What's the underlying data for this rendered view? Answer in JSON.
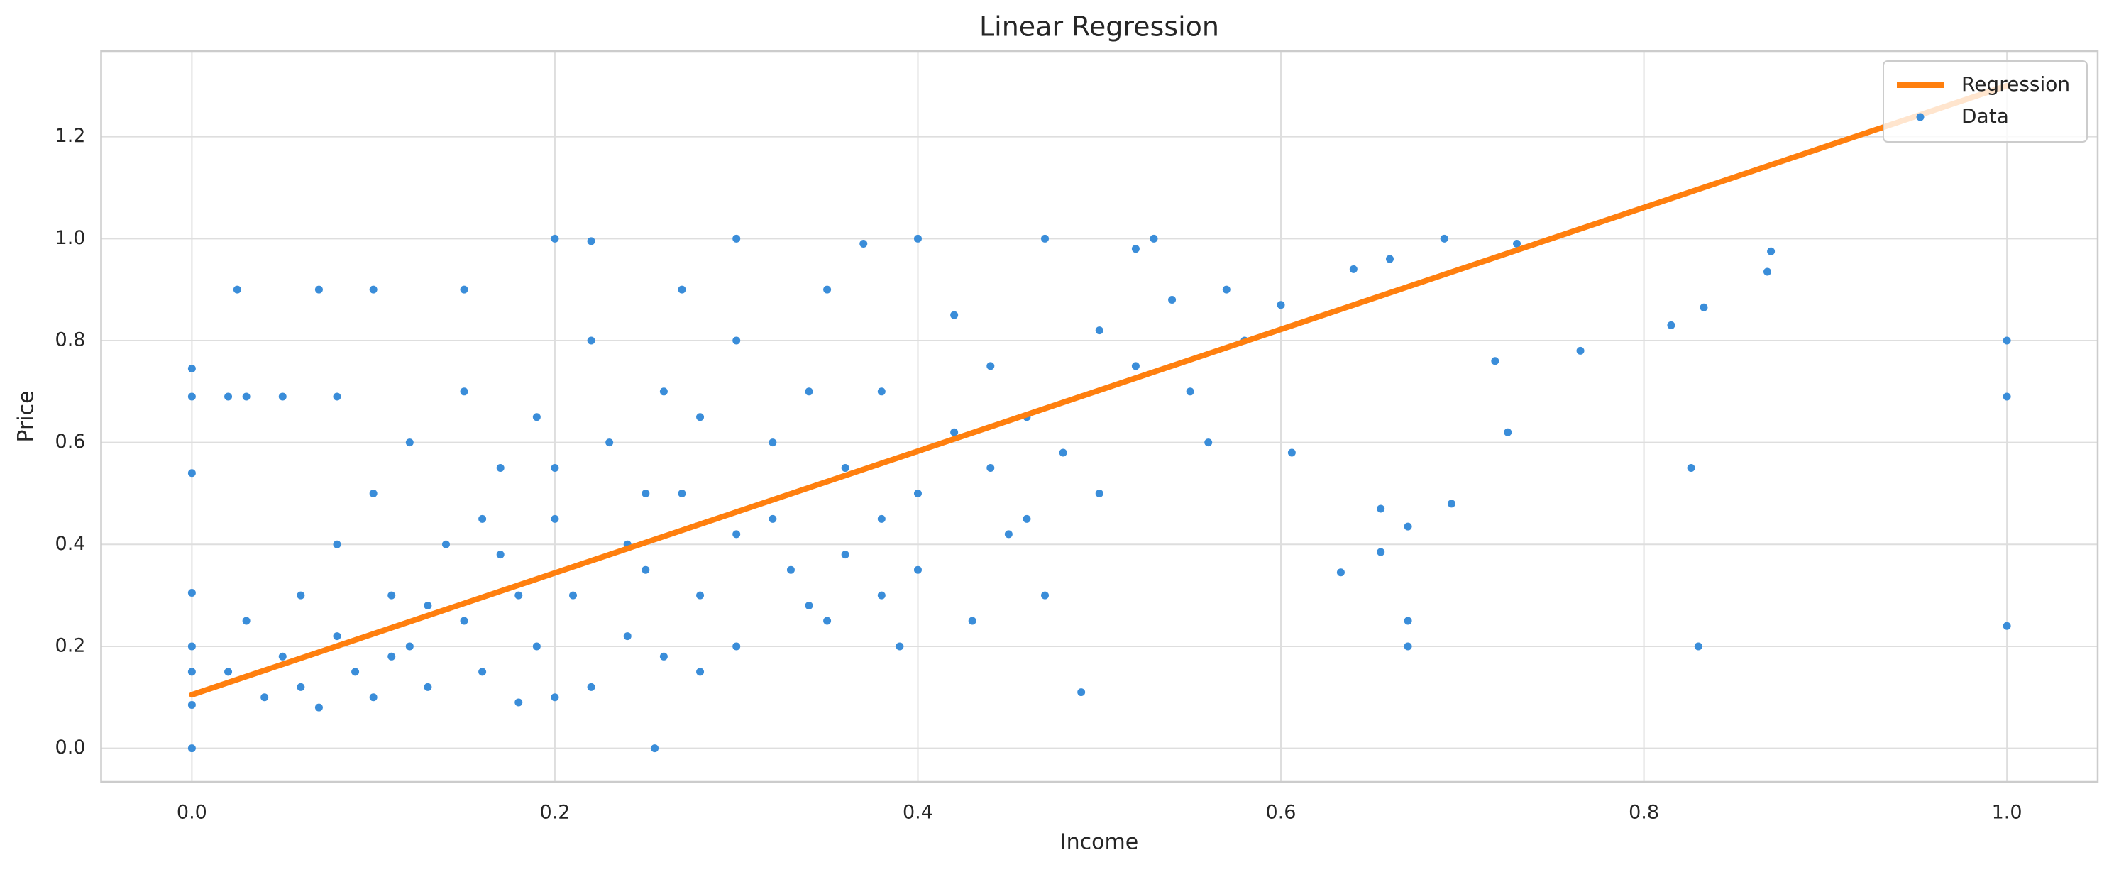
{
  "chart_data": {
    "type": "scatter",
    "title": "Linear Regression",
    "x_label": "Income",
    "y_label": "Price",
    "xlim": [
      -0.05,
      1.05
    ],
    "ylim": [
      -0.066,
      1.368
    ],
    "xticks": [
      {
        "value": 0,
        "label": "0.0"
      },
      0.2,
      0.4,
      0.6,
      0.8,
      {
        "value": 1,
        "label": "1.0"
      }
    ],
    "yticks": [
      {
        "value": 0,
        "label": "0.0"
      },
      0.2,
      0.4,
      0.6,
      0.8,
      {
        "value": 1,
        "label": "1.0"
      },
      1.2
    ],
    "grid": true,
    "legend": "upper right",
    "series": [
      {
        "name": "Regression",
        "type": "line",
        "color": "#ff7f0e",
        "x": [
          0,
          1
        ],
        "values": [
          0.105,
          1.3
        ]
      },
      {
        "name": "Data",
        "type": "scatter",
        "color": "#3a8dd9",
        "x": [
          1.0,
          1.0,
          1.0,
          0.87,
          0.868,
          0.833,
          0.815,
          0.826,
          0.83,
          0.765,
          0.725,
          0.718,
          0.694,
          0.67,
          0.67,
          0.67,
          0.655,
          0.655,
          0.633,
          0.606,
          0.49,
          0.255,
          0.0,
          0.0,
          0.0,
          0.0,
          0.0,
          0.0,
          0.0,
          0.0,
          0.2,
          0.22,
          0.3,
          0.37,
          0.4,
          0.47,
          0.53,
          0.52,
          0.69,
          0.73,
          0.1,
          0.07,
          0.15,
          0.025,
          0.03,
          0.02,
          0.05,
          0.08,
          0.27,
          0.35,
          0.57,
          0.58,
          0.64,
          0.66,
          0.6,
          0.55,
          0.56,
          0.5,
          0.45,
          0.48,
          0.44,
          0.42,
          0.38,
          0.36,
          0.33,
          0.32,
          0.3,
          0.28,
          0.27,
          0.25,
          0.24,
          0.23,
          0.21,
          0.2,
          0.19,
          0.18,
          0.17,
          0.16,
          0.15,
          0.14,
          0.13,
          0.12,
          0.11,
          0.1,
          0.09,
          0.08,
          0.07,
          0.06,
          0.05,
          0.04,
          0.03,
          0.02,
          0.35,
          0.38,
          0.4,
          0.42,
          0.46,
          0.5,
          0.52,
          0.54,
          0.3,
          0.26,
          0.22,
          0.19,
          0.15,
          0.12,
          0.1,
          0.08,
          0.3,
          0.34,
          0.36,
          0.28,
          0.22,
          0.2,
          0.18,
          0.26,
          0.32,
          0.24,
          0.17,
          0.13,
          0.11,
          0.06,
          0.44,
          0.4,
          0.46,
          0.38,
          0.2,
          0.25,
          0.28,
          0.16,
          0.34,
          0.39,
          0.47,
          0.43
        ],
        "values": [
          0.8,
          0.69,
          0.24,
          0.975,
          0.935,
          0.865,
          0.83,
          0.55,
          0.2,
          0.78,
          0.62,
          0.76,
          0.48,
          0.25,
          0.2,
          0.435,
          0.47,
          0.385,
          0.345,
          0.58,
          0.11,
          0.0,
          0.0,
          0.745,
          0.69,
          0.54,
          0.305,
          0.2,
          0.15,
          0.085,
          1.0,
          0.995,
          1.0,
          0.99,
          1.0,
          1.0,
          1.0,
          0.98,
          1.0,
          0.99,
          0.9,
          0.9,
          0.9,
          0.9,
          0.69,
          0.69,
          0.69,
          0.69,
          0.9,
          0.9,
          0.9,
          0.8,
          0.94,
          0.96,
          0.87,
          0.7,
          0.6,
          0.5,
          0.42,
          0.58,
          0.75,
          0.62,
          0.45,
          0.55,
          0.35,
          0.6,
          0.42,
          0.3,
          0.5,
          0.35,
          0.22,
          0.6,
          0.3,
          0.45,
          0.2,
          0.3,
          0.55,
          0.15,
          0.25,
          0.4,
          0.12,
          0.2,
          0.3,
          0.1,
          0.15,
          0.22,
          0.08,
          0.12,
          0.18,
          0.1,
          0.25,
          0.15,
          0.25,
          0.7,
          0.35,
          0.85,
          0.65,
          0.82,
          0.75,
          0.88,
          0.8,
          0.7,
          0.8,
          0.65,
          0.7,
          0.6,
          0.5,
          0.4,
          0.2,
          0.28,
          0.38,
          0.15,
          0.12,
          0.1,
          0.09,
          0.18,
          0.45,
          0.4,
          0.38,
          0.28,
          0.18,
          0.3,
          0.55,
          0.5,
          0.45,
          0.3,
          0.55,
          0.5,
          0.65,
          0.45,
          0.7,
          0.2,
          0.3,
          0.25
        ]
      }
    ]
  }
}
